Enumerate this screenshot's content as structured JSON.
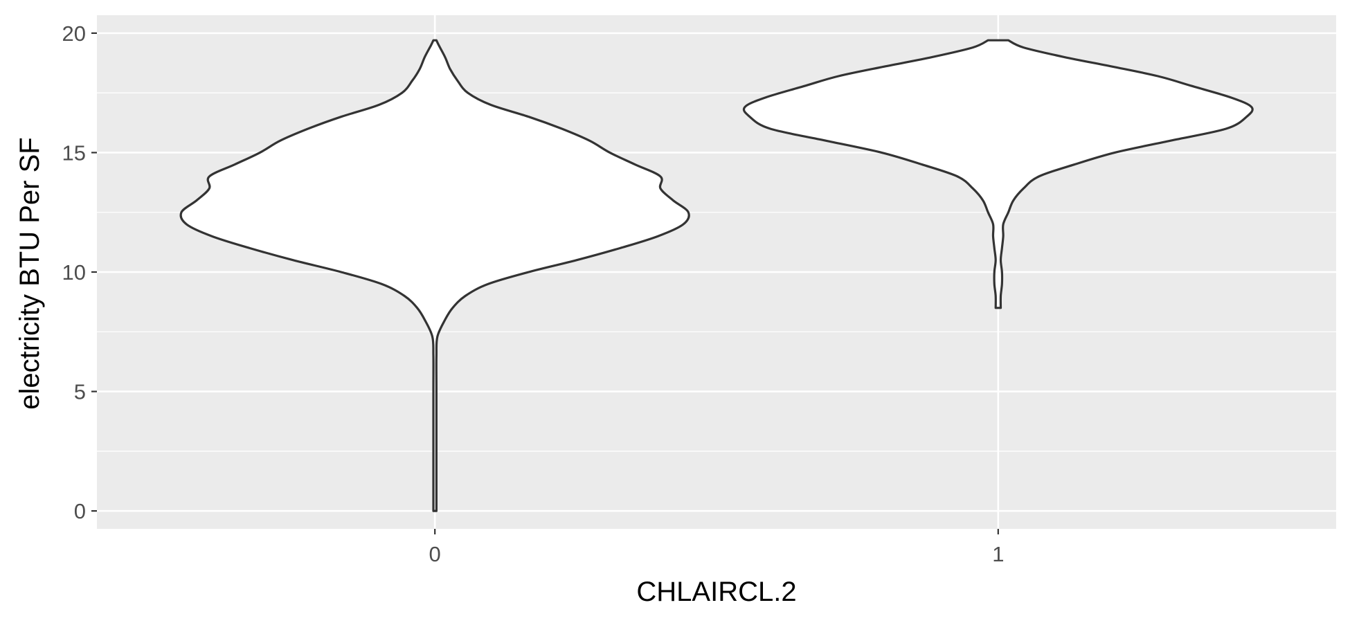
{
  "chart_data": {
    "type": "violin",
    "xlabel": "CHLAIRCL.2",
    "ylabel": "electricity BTU Per SF",
    "categories": [
      "0",
      "1"
    ],
    "ylim": [
      -0.75,
      20.75
    ],
    "yticks": [
      0,
      5,
      10,
      15,
      20
    ],
    "grid": true,
    "legend": "none",
    "panel_color": "#ebebeb",
    "grid_color": "#ffffff",
    "violin_fill": "#ffffff",
    "violin_stroke": "#333333",
    "series": [
      {
        "category": "0",
        "y_range": [
          0,
          19.7
        ],
        "density_profile": [
          [
            0,
            0.0
          ],
          [
            2,
            0.0
          ],
          [
            5,
            0.005
          ],
          [
            6.5,
            0.005
          ],
          [
            7.3,
            0.01
          ],
          [
            8,
            0.04
          ],
          [
            8.5,
            0.07
          ],
          [
            9,
            0.12
          ],
          [
            9.5,
            0.21
          ],
          [
            10,
            0.37
          ],
          [
            10.5,
            0.56
          ],
          [
            11,
            0.73
          ],
          [
            11.5,
            0.88
          ],
          [
            12,
            0.98
          ],
          [
            12.5,
            1.0
          ],
          [
            13,
            0.94
          ],
          [
            13.5,
            0.89
          ],
          [
            14,
            0.89
          ],
          [
            14.5,
            0.79
          ],
          [
            15,
            0.69
          ],
          [
            15.5,
            0.61
          ],
          [
            16,
            0.5
          ],
          [
            16.5,
            0.37
          ],
          [
            17,
            0.22
          ],
          [
            17.5,
            0.13
          ],
          [
            18,
            0.09
          ],
          [
            18.5,
            0.06
          ],
          [
            19,
            0.04
          ],
          [
            19.5,
            0.015
          ],
          [
            19.7,
            0.0
          ]
        ]
      },
      {
        "category": "1",
        "y_range": [
          8.5,
          19.7
        ],
        "density_profile": [
          [
            8.5,
            0.01
          ],
          [
            9,
            0.01
          ],
          [
            9.5,
            0.015
          ],
          [
            10,
            0.015
          ],
          [
            10.5,
            0.01
          ],
          [
            11,
            0.015
          ],
          [
            11.5,
            0.02
          ],
          [
            12,
            0.02
          ],
          [
            12.5,
            0.04
          ],
          [
            13,
            0.06
          ],
          [
            13.5,
            0.1
          ],
          [
            14,
            0.16
          ],
          [
            14.5,
            0.3
          ],
          [
            15,
            0.46
          ],
          [
            15.5,
            0.68
          ],
          [
            16,
            0.9
          ],
          [
            16.5,
            0.98
          ],
          [
            16.9,
            1.0
          ],
          [
            17.3,
            0.92
          ],
          [
            17.8,
            0.76
          ],
          [
            18.2,
            0.63
          ],
          [
            18.6,
            0.45
          ],
          [
            19,
            0.26
          ],
          [
            19.4,
            0.1
          ],
          [
            19.7,
            0.04
          ]
        ]
      }
    ]
  }
}
